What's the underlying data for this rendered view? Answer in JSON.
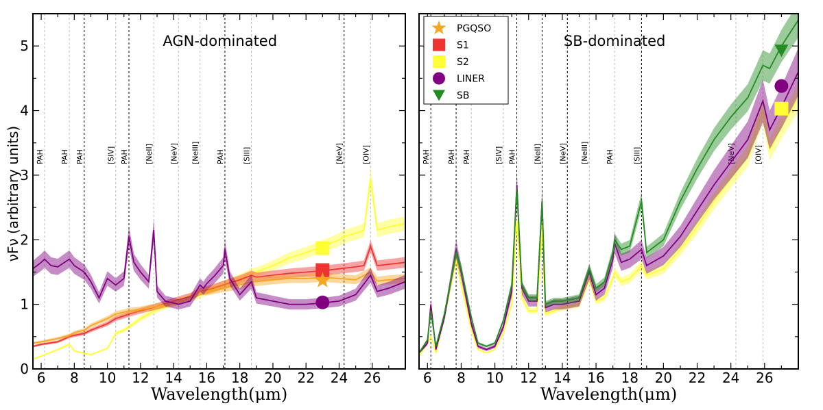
{
  "chart_data": [
    {
      "type": "line",
      "title": "AGN-dominated",
      "xlabel": "Wavelength(μm)",
      "ylabel": "νFν (arbitrary units)",
      "xlim": [
        5.5,
        28.0
      ],
      "ylim": [
        0,
        5.5
      ],
      "xticks": [
        6,
        8,
        10,
        12,
        14,
        16,
        18,
        20,
        22,
        24,
        26
      ],
      "yticks": [
        0,
        1,
        2,
        3,
        4,
        5
      ],
      "colors": {
        "PGQSO": "#f5a623",
        "S1": "#ee3333",
        "S2": "#ffff33",
        "LINER": "#800080",
        "SB": "#228b22"
      },
      "feature_lines": [
        {
          "x": 6.2,
          "label": "PAH",
          "style": "gray"
        },
        {
          "x": 7.7,
          "label": "PAH",
          "style": "gray"
        },
        {
          "x": 8.6,
          "label": "PAH",
          "style": "black"
        },
        {
          "x": 10.5,
          "label": "[SIV]",
          "style": "gray"
        },
        {
          "x": 11.3,
          "label": "PAH",
          "style": "black"
        },
        {
          "x": 12.8,
          "label": "[NeII]",
          "style": "gray"
        },
        {
          "x": 14.3,
          "label": "[NeV]",
          "style": "gray"
        },
        {
          "x": 15.6,
          "label": "[NeIII]",
          "style": "gray"
        },
        {
          "x": 17.1,
          "label": "PAH",
          "style": "black"
        },
        {
          "x": 18.7,
          "label": "[SIII]",
          "style": "gray"
        },
        {
          "x": 24.3,
          "label": "[NeV]",
          "style": "black"
        },
        {
          "x": 25.9,
          "label": "[OIV]",
          "style": "gray"
        }
      ],
      "series": [
        {
          "name": "S2",
          "x": [
            5.5,
            6,
            7,
            7.7,
            8,
            8.6,
            9,
            10,
            10.5,
            11,
            11.3,
            12,
            13,
            14,
            15,
            15.6,
            16,
            17,
            18,
            18.7,
            19,
            20,
            21,
            22,
            23,
            24,
            24.3,
            25,
            25.5,
            25.9,
            26.3,
            27,
            28
          ],
          "y": [
            0.15,
            0.2,
            0.3,
            0.38,
            0.28,
            0.24,
            0.22,
            0.32,
            0.55,
            0.6,
            0.65,
            0.78,
            0.92,
            1.02,
            1.1,
            1.15,
            1.2,
            1.3,
            1.4,
            1.48,
            1.5,
            1.6,
            1.72,
            1.8,
            1.9,
            2.0,
            2.05,
            2.1,
            2.15,
            2.95,
            2.15,
            2.2,
            2.25
          ]
        },
        {
          "name": "S1",
          "x": [
            5.5,
            6,
            7,
            7.7,
            8,
            8.6,
            9,
            10,
            10.5,
            11,
            11.3,
            12,
            13,
            14,
            15,
            15.6,
            16,
            17,
            18,
            18.7,
            19,
            20,
            21,
            22,
            23,
            24,
            25,
            25.5,
            25.9,
            26.3,
            27,
            28
          ],
          "y": [
            0.35,
            0.38,
            0.42,
            0.5,
            0.52,
            0.55,
            0.6,
            0.7,
            0.78,
            0.82,
            0.85,
            0.9,
            0.97,
            1.05,
            1.12,
            1.2,
            1.22,
            1.3,
            1.38,
            1.45,
            1.42,
            1.45,
            1.48,
            1.5,
            1.52,
            1.55,
            1.58,
            1.6,
            1.9,
            1.6,
            1.62,
            1.65
          ]
        },
        {
          "name": "PGQSO",
          "x": [
            5.5,
            6,
            7,
            7.7,
            8,
            8.6,
            9,
            10,
            10.5,
            11,
            11.3,
            12,
            13,
            14,
            15,
            15.6,
            16,
            17,
            18,
            18.7,
            19,
            20,
            21,
            22,
            23,
            24,
            25,
            25.9,
            26.3,
            27,
            28
          ],
          "y": [
            0.4,
            0.42,
            0.47,
            0.52,
            0.56,
            0.6,
            0.67,
            0.78,
            0.85,
            0.88,
            0.9,
            0.92,
            0.97,
            1.02,
            1.1,
            1.2,
            1.2,
            1.25,
            1.3,
            1.35,
            1.35,
            1.38,
            1.4,
            1.4,
            1.42,
            1.4,
            1.38,
            1.5,
            1.36,
            1.38,
            1.4
          ]
        },
        {
          "name": "LINER",
          "x": [
            5.5,
            6,
            6.2,
            6.6,
            7,
            7.7,
            8,
            8.6,
            9,
            9.5,
            10,
            10.5,
            11,
            11.3,
            11.6,
            12,
            12.5,
            12.8,
            13,
            13.5,
            14,
            14.3,
            15,
            15.6,
            15.8,
            16,
            16.5,
            17,
            17.1,
            17.4,
            18,
            18.7,
            19,
            20,
            21,
            22,
            23,
            24,
            25,
            25.9,
            26.3,
            27,
            28
          ],
          "y": [
            1.55,
            1.65,
            1.7,
            1.6,
            1.58,
            1.7,
            1.6,
            1.5,
            1.35,
            1.1,
            1.4,
            1.3,
            1.4,
            2.05,
            1.65,
            1.5,
            1.35,
            2.15,
            1.2,
            1.05,
            1.02,
            1.0,
            1.05,
            1.3,
            1.25,
            1.32,
            1.45,
            1.6,
            1.85,
            1.4,
            1.15,
            1.35,
            1.1,
            1.05,
            1.0,
            1.0,
            1.02,
            1.05,
            1.15,
            1.45,
            1.2,
            1.25,
            1.35
          ]
        }
      ],
      "markers": [
        {
          "name": "S2",
          "shape": "square",
          "x": 23.0,
          "y": 1.87
        },
        {
          "name": "S1",
          "shape": "square",
          "x": 23.0,
          "y": 1.53
        },
        {
          "name": "PGQSO",
          "shape": "star",
          "x": 23.0,
          "y": 1.37
        },
        {
          "name": "LINER",
          "shape": "circle",
          "x": 23.0,
          "y": 1.03
        }
      ]
    },
    {
      "type": "line",
      "title": "SB-dominated",
      "xlabel": "Wavelength(μm)",
      "ylabel": "",
      "xlim": [
        5.5,
        28.0
      ],
      "ylim": [
        0,
        5.5
      ],
      "xticks": [
        6,
        8,
        10,
        12,
        14,
        16,
        18,
        20,
        22,
        24,
        26
      ],
      "yticks": [
        0,
        1,
        2,
        3,
        4,
        5
      ],
      "legend": {
        "position": "top-left",
        "entries": [
          {
            "label": "PGQSO",
            "shape": "star",
            "color": "#f5a623"
          },
          {
            "label": "S1",
            "shape": "square",
            "color": "#ee3333"
          },
          {
            "label": "S2",
            "shape": "square",
            "color": "#ffff33"
          },
          {
            "label": "LINER",
            "shape": "circle",
            "color": "#800080"
          },
          {
            "label": "SB",
            "shape": "triangle",
            "color": "#228b22"
          }
        ]
      },
      "feature_lines": [
        {
          "x": 6.2,
          "label": "PAH",
          "style": "black"
        },
        {
          "x": 7.7,
          "label": "PAH",
          "style": "black"
        },
        {
          "x": 8.6,
          "label": "PAH",
          "style": "gray"
        },
        {
          "x": 10.5,
          "label": "[SIV]",
          "style": "gray"
        },
        {
          "x": 11.3,
          "label": "PAH",
          "style": "black"
        },
        {
          "x": 12.8,
          "label": "[NeII]",
          "style": "black"
        },
        {
          "x": 14.3,
          "label": "[NeV]",
          "style": "black"
        },
        {
          "x": 15.6,
          "label": "[NeIII]",
          "style": "gray"
        },
        {
          "x": 17.1,
          "label": "PAH",
          "style": "gray"
        },
        {
          "x": 18.7,
          "label": "[SIII]",
          "style": "black"
        },
        {
          "x": 24.3,
          "label": "[NeV]",
          "style": "gray"
        },
        {
          "x": 25.9,
          "label": "[OIV]",
          "style": "gray"
        }
      ],
      "series": [
        {
          "name": "S2",
          "x": [
            5.5,
            6,
            6.2,
            6.5,
            7,
            7.7,
            8,
            8.6,
            9,
            9.5,
            10,
            10.5,
            11,
            11.3,
            11.6,
            12,
            12.5,
            12.8,
            13,
            13.5,
            14,
            15,
            15.6,
            16,
            16.5,
            17,
            17.1,
            17.5,
            18,
            18.7,
            19,
            20,
            21,
            22,
            23,
            24,
            25,
            25.9,
            26.3,
            27,
            28
          ],
          "y": [
            0.2,
            0.4,
            0.5,
            0.25,
            0.8,
            1.7,
            1.3,
            0.6,
            0.3,
            0.25,
            0.3,
            0.55,
            1.0,
            2.3,
            1.1,
            0.9,
            0.9,
            2.2,
            0.85,
            0.9,
            0.95,
            1.0,
            1.4,
            1.05,
            1.1,
            1.4,
            1.5,
            1.35,
            1.4,
            1.6,
            1.45,
            1.55,
            1.85,
            2.2,
            2.6,
            2.95,
            3.3,
            4.0,
            3.4,
            3.75,
            4.2
          ]
        },
        {
          "name": "LINER",
          "x": [
            5.5,
            6,
            6.2,
            6.5,
            7,
            7.7,
            8,
            8.6,
            9,
            9.5,
            10,
            10.5,
            11,
            11.3,
            11.6,
            12,
            12.5,
            12.8,
            13,
            13.5,
            14,
            15,
            15.6,
            16,
            16.5,
            17,
            17.1,
            17.5,
            18,
            18.7,
            19,
            20,
            21,
            22,
            23,
            24,
            25,
            25.9,
            26.3,
            27,
            28
          ],
          "y": [
            0.25,
            0.4,
            1.0,
            0.3,
            0.8,
            1.85,
            1.5,
            0.7,
            0.35,
            0.3,
            0.35,
            0.65,
            1.2,
            2.85,
            1.25,
            1.05,
            1.05,
            2.6,
            0.95,
            1.0,
            1.0,
            1.05,
            1.5,
            1.15,
            1.25,
            1.7,
            1.95,
            1.65,
            1.7,
            1.85,
            1.6,
            1.75,
            2.05,
            2.45,
            2.85,
            3.2,
            3.55,
            4.15,
            3.7,
            4.05,
            4.6
          ]
        },
        {
          "name": "SB",
          "x": [
            5.5,
            6,
            6.2,
            6.5,
            7,
            7.7,
            8,
            8.6,
            9,
            9.5,
            10,
            10.5,
            11,
            11.3,
            11.6,
            12,
            12.5,
            12.8,
            13,
            13.5,
            14,
            15,
            15.6,
            16,
            16.5,
            17,
            17.1,
            17.5,
            18,
            18.7,
            19,
            20,
            21,
            22,
            23,
            24,
            25,
            25.9,
            26.3,
            27,
            28
          ],
          "y": [
            0.25,
            0.45,
            0.9,
            0.35,
            0.85,
            1.8,
            1.55,
            0.8,
            0.4,
            0.35,
            0.4,
            0.75,
            1.3,
            2.8,
            1.3,
            1.1,
            1.1,
            2.6,
            1.0,
            1.05,
            1.05,
            1.1,
            1.55,
            1.25,
            1.35,
            1.8,
            2.0,
            1.85,
            1.9,
            2.6,
            1.8,
            2.0,
            2.6,
            3.1,
            3.55,
            3.9,
            4.2,
            4.7,
            4.65,
            5.0,
            5.4
          ]
        }
      ],
      "markers": [
        {
          "name": "SB",
          "shape": "triangle",
          "x": 27.0,
          "y": 4.93
        },
        {
          "name": "LINER",
          "shape": "circle",
          "x": 27.0,
          "y": 4.38
        },
        {
          "name": "S2",
          "shape": "square",
          "x": 27.0,
          "y": 4.03
        }
      ]
    }
  ]
}
